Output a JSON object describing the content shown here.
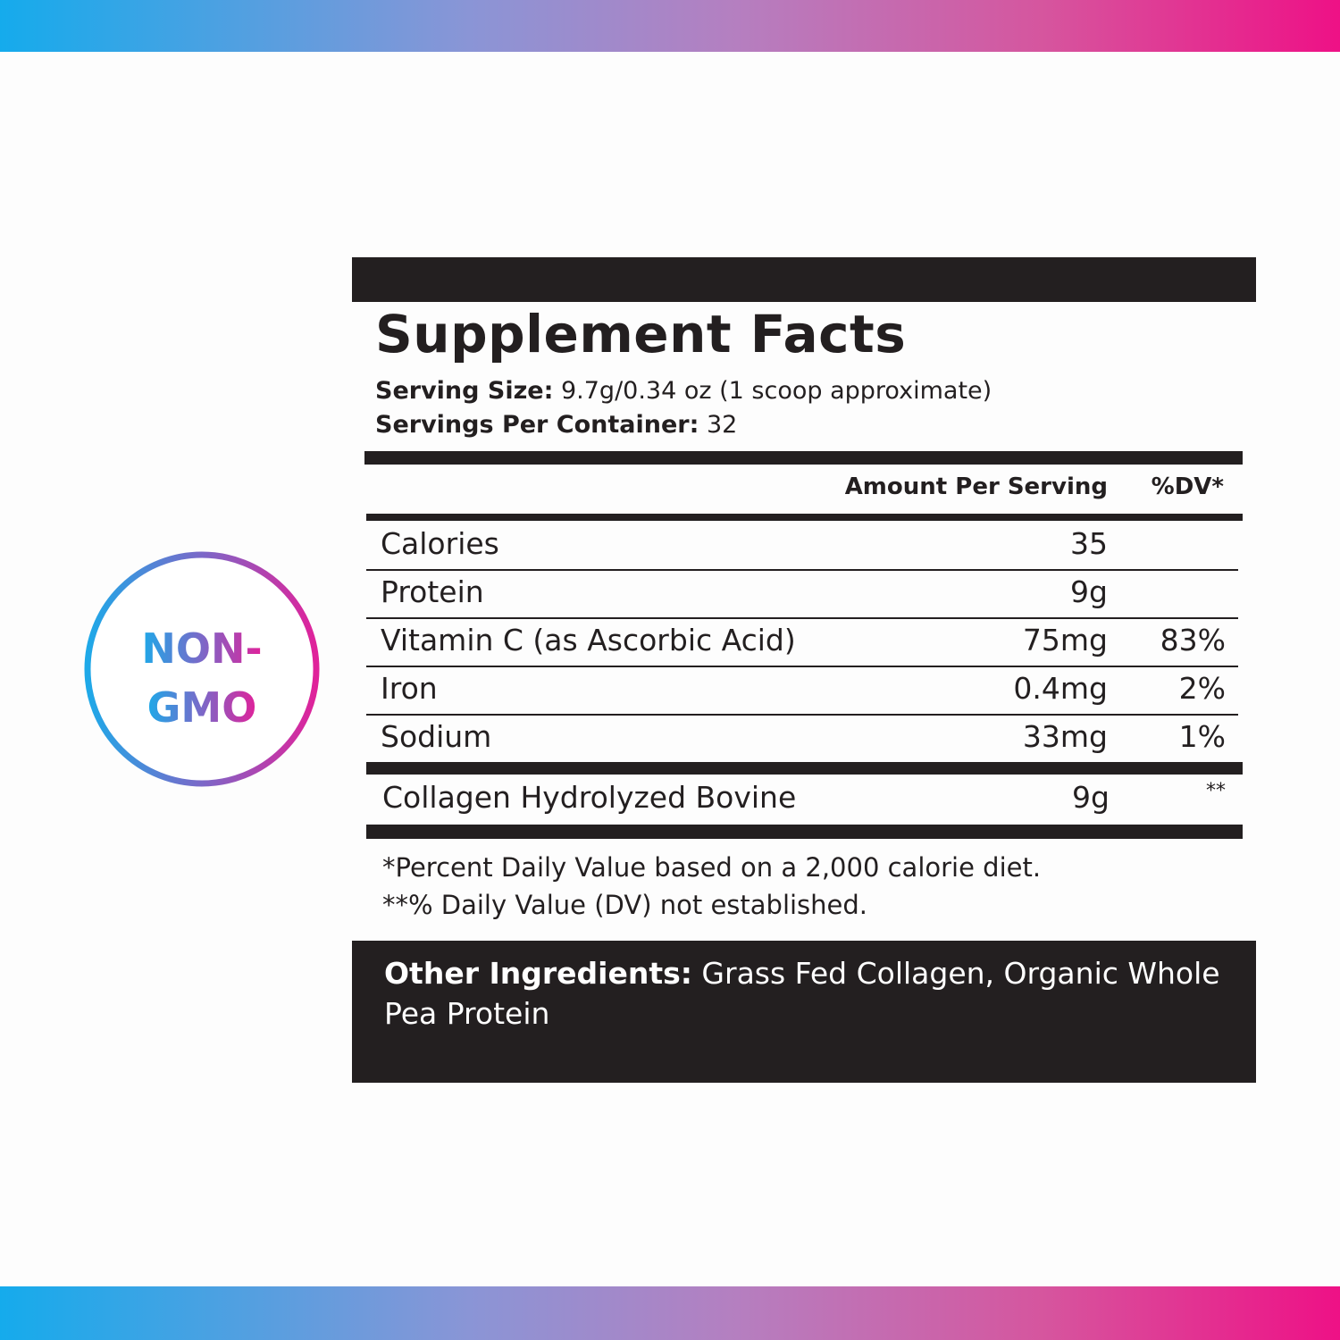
{
  "colors": {
    "gradient_start": "#15abec",
    "gradient_end": "#ee1186",
    "ink": "#231f20"
  },
  "badge": {
    "line1": "NON-",
    "line2": "GMO"
  },
  "label": {
    "title": "Supplement Facts",
    "serving_size_label": "Serving Size:",
    "serving_size_value": " 9.7g/0.34 oz (1 scoop approximate)",
    "servings_label": "Servings Per Container:",
    "servings_value": " 32",
    "col_amount": "Amount Per Serving",
    "col_dv": "%DV*",
    "rows": [
      {
        "name": "Calories",
        "amount": "35",
        "dv": ""
      },
      {
        "name": "Protein",
        "amount": "9g",
        "dv": ""
      },
      {
        "name": "Vitamin C (as Ascorbic Acid)",
        "amount": "75mg",
        "dv": "83%"
      },
      {
        "name": "Iron",
        "amount": "0.4mg",
        "dv": "2%"
      },
      {
        "name": "Sodium",
        "amount": "33mg",
        "dv": "1%"
      }
    ],
    "special_row": {
      "name": "Collagen Hydrolyzed Bovine",
      "amount": "9g",
      "dv": "**"
    },
    "footnote1": "*Percent Daily Value based on a 2,000 calorie diet.",
    "footnote2": "**% Daily Value (DV) not established.",
    "other_label": "Other Ingredients:",
    "other_value": " Grass Fed Collagen, Organic Whole Pea Protein"
  }
}
